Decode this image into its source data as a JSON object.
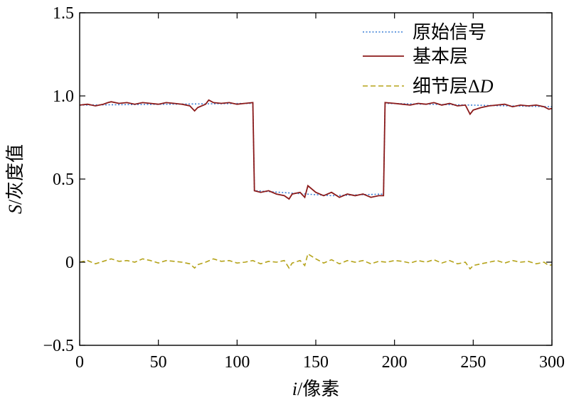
{
  "chart_data": {
    "type": "line",
    "xlabel_var": "i",
    "xlabel_unit": "/像素",
    "ylabel_var": "S",
    "ylabel_unit": "/灰度值",
    "xlim": [
      0,
      300
    ],
    "ylim": [
      -0.5,
      1.5
    ],
    "xticks": [
      0,
      50,
      100,
      150,
      200,
      250,
      300
    ],
    "yticks": [
      -0.5,
      0,
      0.5,
      1.0,
      1.5
    ],
    "ytick_labels": [
      "−0.5",
      "0",
      "0.5",
      "1.0",
      "1.5"
    ],
    "grid": false,
    "legend_position": "top-right",
    "series": [
      {
        "name": "原始信号",
        "style": "dotted",
        "color": "#3a7fd5",
        "x": [
          0,
          110,
          111,
          160,
          193,
          194,
          300
        ],
        "y": [
          0.945,
          0.955,
          0.43,
          0.4,
          0.41,
          0.955,
          0.935
        ]
      },
      {
        "name": "基本层",
        "style": "solid",
        "color": "#8b1a1a",
        "x": [
          0,
          5,
          10,
          15,
          18,
          20,
          25,
          30,
          35,
          40,
          45,
          50,
          55,
          60,
          65,
          70,
          73,
          75,
          80,
          82,
          85,
          90,
          95,
          100,
          105,
          110,
          111,
          115,
          120,
          125,
          130,
          133,
          135,
          140,
          143,
          145,
          150,
          155,
          160,
          165,
          170,
          175,
          180,
          185,
          190,
          193,
          194,
          200,
          205,
          210,
          215,
          220,
          225,
          230,
          235,
          240,
          245,
          248,
          250,
          255,
          260,
          265,
          270,
          275,
          280,
          285,
          290,
          295,
          298,
          300
        ],
        "y": [
          0.945,
          0.95,
          0.94,
          0.95,
          0.96,
          0.965,
          0.955,
          0.96,
          0.95,
          0.96,
          0.955,
          0.95,
          0.96,
          0.955,
          0.95,
          0.94,
          0.91,
          0.93,
          0.95,
          0.975,
          0.96,
          0.955,
          0.96,
          0.95,
          0.955,
          0.96,
          0.43,
          0.42,
          0.43,
          0.41,
          0.4,
          0.38,
          0.41,
          0.42,
          0.39,
          0.46,
          0.42,
          0.4,
          0.42,
          0.39,
          0.41,
          0.4,
          0.41,
          0.39,
          0.4,
          0.4,
          0.96,
          0.955,
          0.95,
          0.945,
          0.955,
          0.95,
          0.96,
          0.945,
          0.955,
          0.94,
          0.945,
          0.89,
          0.915,
          0.93,
          0.94,
          0.945,
          0.95,
          0.935,
          0.945,
          0.94,
          0.945,
          0.935,
          0.92,
          0.925
        ]
      },
      {
        "name": "细节层ΔD",
        "style": "dashed",
        "color": "#b5a31a",
        "x": [
          0,
          5,
          10,
          15,
          20,
          25,
          30,
          35,
          40,
          45,
          50,
          55,
          60,
          65,
          70,
          73,
          75,
          80,
          85,
          90,
          95,
          100,
          105,
          110,
          115,
          120,
          125,
          130,
          133,
          135,
          140,
          143,
          145,
          150,
          155,
          160,
          165,
          170,
          175,
          180,
          185,
          190,
          195,
          200,
          205,
          210,
          215,
          220,
          225,
          230,
          235,
          240,
          245,
          248,
          250,
          255,
          260,
          265,
          270,
          275,
          280,
          285,
          290,
          295,
          298,
          300
        ],
        "y": [
          0.0,
          0.01,
          -0.01,
          0.005,
          0.02,
          0.005,
          0.01,
          0.0,
          0.02,
          0.01,
          -0.005,
          0.01,
          0.005,
          0.0,
          -0.01,
          -0.035,
          -0.015,
          0.0,
          0.02,
          0.005,
          0.01,
          -0.005,
          0.0,
          0.01,
          -0.01,
          0.005,
          0.0,
          0.01,
          -0.035,
          -0.005,
          0.01,
          -0.02,
          0.05,
          0.02,
          -0.005,
          0.015,
          -0.01,
          0.01,
          0.0,
          0.01,
          -0.01,
          0.005,
          0.0,
          0.01,
          0.005,
          -0.005,
          0.01,
          0.0,
          0.015,
          -0.005,
          0.01,
          -0.01,
          0.0,
          -0.04,
          -0.02,
          -0.01,
          0.0,
          0.01,
          -0.005,
          0.01,
          0.0,
          0.005,
          -0.01,
          0.0,
          -0.02,
          -0.015
        ]
      }
    ]
  }
}
